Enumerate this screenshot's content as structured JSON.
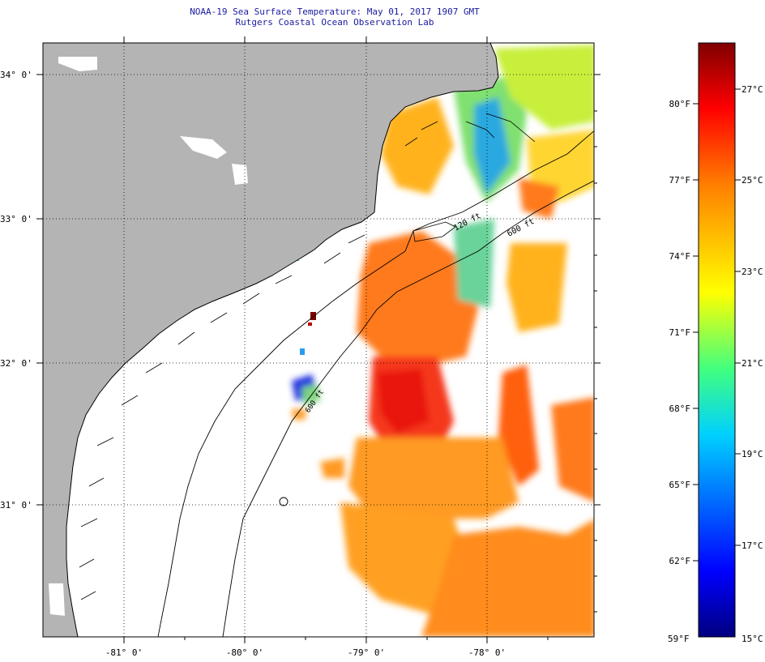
{
  "header": {
    "title": "NOAA-19 Sea Surface Temperature:  May 01, 2017 1907 GMT",
    "subtitle": "Rutgers Coastal Ocean Observation Lab"
  },
  "map": {
    "lat_labels": [
      "34° 0'",
      "33° 0'",
      "32° 0'",
      "31° 0'"
    ],
    "lon_labels": [
      "-81° 0'",
      "-80° 0'",
      "-79° 0'",
      "-78° 0'"
    ],
    "contour_labels": [
      "120 ft",
      "600 ft",
      "600 ft"
    ],
    "colors": {
      "land": "#b4b4b4",
      "ocean_no_data": "#ffffff",
      "coastline": "#000000",
      "graticule": "#000000"
    }
  },
  "colorbar": {
    "fahrenheit_labels": [
      "80°F",
      "77°F",
      "74°F",
      "71°F",
      "68°F",
      "65°F",
      "62°F",
      "59°F"
    ],
    "celsius_labels": [
      "27°C",
      "25°C",
      "23°C",
      "21°C",
      "19°C",
      "17°C",
      "15°C"
    ],
    "range_c": [
      15,
      28.3
    ],
    "scale": "jet"
  }
}
